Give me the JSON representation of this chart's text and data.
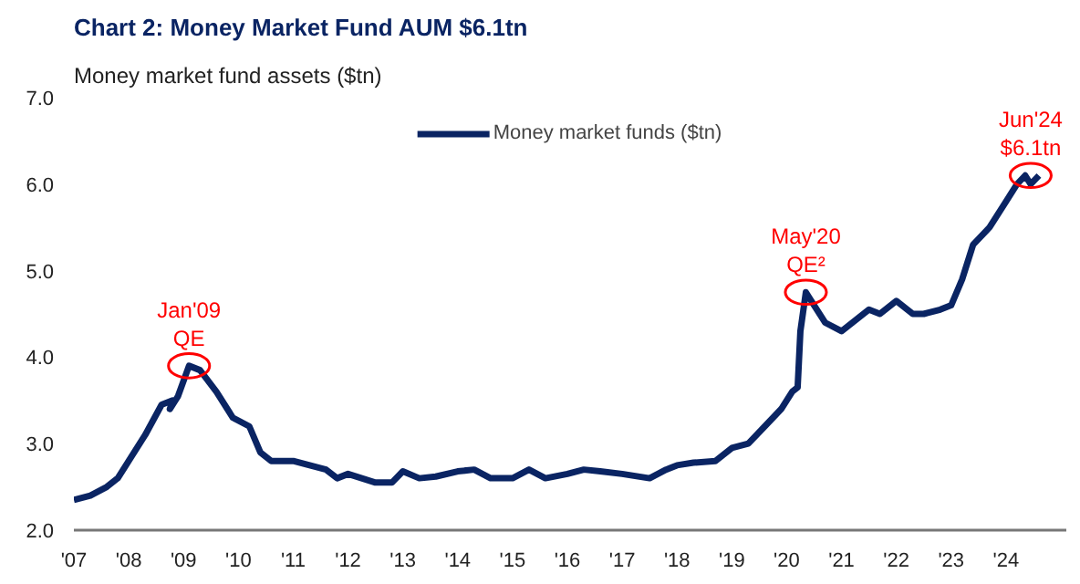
{
  "chart_data": {
    "type": "line",
    "title": "Chart 2: Money Market Fund AUM $6.1tn",
    "subtitle": "Money market fund assets ($tn)",
    "x": [
      2007.0,
      2007.3,
      2007.6,
      2007.8,
      2008.0,
      2008.3,
      2008.6,
      2008.8,
      2008.75,
      2008.9,
      2009.1,
      2009.3,
      2009.6,
      2009.9,
      2010.2,
      2010.4,
      2010.6,
      2011.0,
      2011.3,
      2011.6,
      2011.8,
      2012.0,
      2012.5,
      2012.8,
      2013.0,
      2013.3,
      2013.6,
      2014.0,
      2014.3,
      2014.6,
      2015.0,
      2015.3,
      2015.6,
      2016.0,
      2016.3,
      2016.6,
      2017.0,
      2017.5,
      2017.8,
      2018.0,
      2018.3,
      2018.7,
      2019.0,
      2019.3,
      2019.6,
      2019.9,
      2020.1,
      2020.2,
      2020.25,
      2020.35,
      2020.5,
      2020.7,
      2021.0,
      2021.3,
      2021.5,
      2021.7,
      2022.0,
      2022.3,
      2022.5,
      2022.8,
      2023.0,
      2023.2,
      2023.4,
      2023.7,
      2024.0,
      2024.2,
      2024.35,
      2024.45,
      2024.6
    ],
    "series": [
      {
        "name": "Money market funds ($tn)",
        "color": "#0a2463",
        "values": [
          2.35,
          2.4,
          2.5,
          2.6,
          2.8,
          3.1,
          3.45,
          3.5,
          3.4,
          3.55,
          3.9,
          3.85,
          3.6,
          3.3,
          3.2,
          2.9,
          2.8,
          2.8,
          2.75,
          2.7,
          2.6,
          2.65,
          2.55,
          2.55,
          2.68,
          2.6,
          2.62,
          2.68,
          2.7,
          2.6,
          2.6,
          2.7,
          2.6,
          2.65,
          2.7,
          2.68,
          2.65,
          2.6,
          2.7,
          2.75,
          2.78,
          2.8,
          2.95,
          3.0,
          3.2,
          3.4,
          3.6,
          3.65,
          4.3,
          4.75,
          4.6,
          4.4,
          4.3,
          4.45,
          4.55,
          4.5,
          4.65,
          4.5,
          4.5,
          4.55,
          4.6,
          4.9,
          5.3,
          5.5,
          5.8,
          6.0,
          6.1,
          6.0,
          6.1
        ]
      }
    ],
    "xlim": [
      2007,
      2025.1
    ],
    "xticks": [
      {
        "value": 2007,
        "label": "'07"
      },
      {
        "value": 2008,
        "label": "'08"
      },
      {
        "value": 2009,
        "label": "'09"
      },
      {
        "value": 2010,
        "label": "'10"
      },
      {
        "value": 2011,
        "label": "'11"
      },
      {
        "value": 2012,
        "label": "'12"
      },
      {
        "value": 2013,
        "label": "'13"
      },
      {
        "value": 2014,
        "label": "'14"
      },
      {
        "value": 2015,
        "label": "'15"
      },
      {
        "value": 2016,
        "label": "'16"
      },
      {
        "value": 2017,
        "label": "'17"
      },
      {
        "value": 2018,
        "label": "'18"
      },
      {
        "value": 2019,
        "label": "'19"
      },
      {
        "value": 2020,
        "label": "'20"
      },
      {
        "value": 2021,
        "label": "'21"
      },
      {
        "value": 2022,
        "label": "'22"
      },
      {
        "value": 2023,
        "label": "'23"
      },
      {
        "value": 2024,
        "label": "'24"
      }
    ],
    "ylim": [
      2.0,
      7.0
    ],
    "yticks": [
      {
        "value": 2.0,
        "label": "2.0"
      },
      {
        "value": 3.0,
        "label": "3.0"
      },
      {
        "value": 4.0,
        "label": "4.0"
      },
      {
        "value": 5.0,
        "label": "5.0"
      },
      {
        "value": 6.0,
        "label": "6.0"
      },
      {
        "value": 7.0,
        "label": "7.0"
      }
    ],
    "annotations": [
      {
        "text": "Jan'09\nQE",
        "x": 2009.1,
        "y": 3.9
      },
      {
        "text": "May'20\nQE²",
        "x": 2020.35,
        "y": 4.75
      },
      {
        "text": "Jun'24\n$6.1tn",
        "x": 2024.45,
        "y": 6.1
      }
    ],
    "grid": false,
    "legend": "top",
    "line_style": "solid",
    "marker": "none"
  }
}
